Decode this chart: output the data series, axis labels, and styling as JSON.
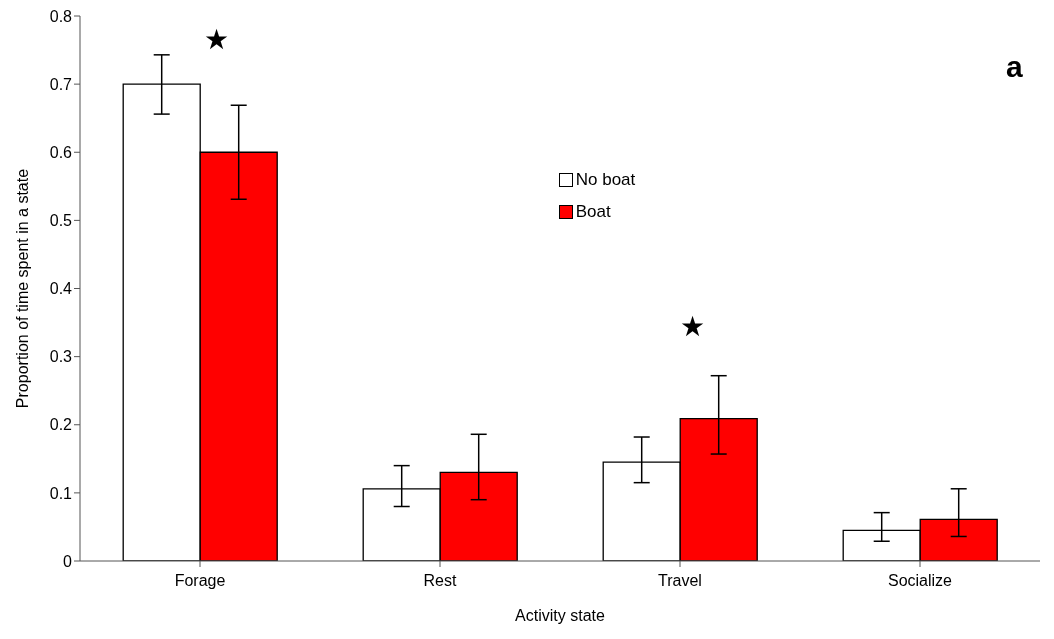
{
  "chart_data": {
    "type": "bar",
    "xlabel": "Activity state",
    "ylabel": "Proportion of time spent in a state",
    "categories": [
      "Forage",
      "Rest",
      "Travel",
      "Socialize"
    ],
    "series": [
      {
        "name": "No boat",
        "color": "#ffffff",
        "values": [
          0.7,
          0.106,
          0.145,
          0.045
        ],
        "errors": [
          [
            0.656,
            0.743
          ],
          [
            0.08,
            0.14
          ],
          [
            0.115,
            0.182
          ],
          [
            0.029,
            0.071
          ]
        ]
      },
      {
        "name": "Boat",
        "color": "#ff0000",
        "values": [
          0.6,
          0.13,
          0.209,
          0.061
        ],
        "errors": [
          [
            0.531,
            0.669
          ],
          [
            0.09,
            0.186
          ],
          [
            0.157,
            0.272
          ],
          [
            0.036,
            0.106
          ]
        ]
      }
    ],
    "ylim": [
      0,
      0.8
    ],
    "yticks": [
      0,
      0.1,
      0.2,
      0.3,
      0.4,
      0.5,
      0.6,
      0.7,
      0.8
    ],
    "grid": false,
    "legend": "center",
    "annotations": [
      "★",
      "★",
      "a"
    ]
  }
}
